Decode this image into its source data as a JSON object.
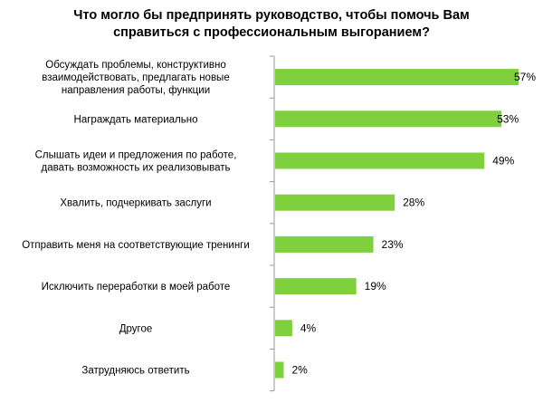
{
  "chart_data": {
    "type": "bar",
    "orientation": "horizontal",
    "title": "Что могло бы предпринять руководство, чтобы помочь Вам\nсправиться с профессиональным выгоранием?",
    "categories": [
      [
        "Обсуждать проблемы,  конструктивно",
        "взаимодействовать, предлагать новые",
        "направления  работы, функции"
      ],
      [
        "Награждать материально"
      ],
      [
        "Слышать идеи и предложения  по работе,",
        "давать возможность их реализовывать"
      ],
      [
        "Хвалить, подчеркивать заслуги"
      ],
      [
        "Отправить меня на соответствующие тренинги"
      ],
      [
        "Исключить переработки в моей работе"
      ],
      [
        "Другое"
      ],
      [
        "Затрудняюсь ответить"
      ]
    ],
    "values": [
      57,
      53,
      49,
      28,
      23,
      19,
      4,
      2
    ],
    "labels": [
      "57%",
      "53%",
      "49%",
      "28%",
      "23%",
      "19%",
      "4%",
      "2%"
    ],
    "unit": "%",
    "xlim": [
      0,
      57
    ],
    "grid": false,
    "bar_color": "#7ed03c",
    "axis_color": "#999999"
  }
}
